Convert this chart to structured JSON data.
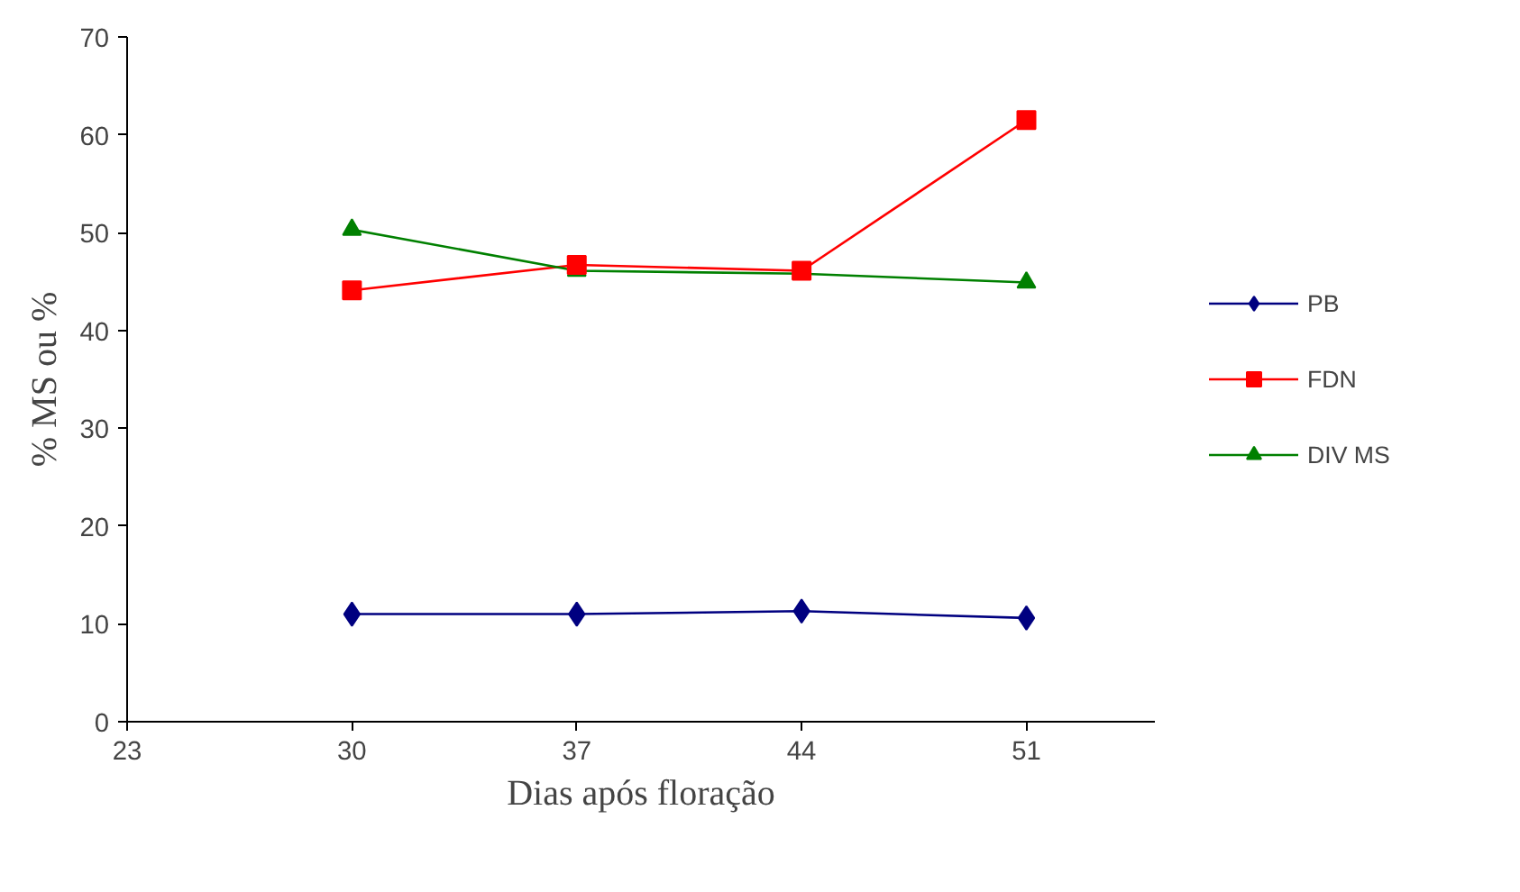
{
  "chart_data": {
    "type": "line",
    "xlabel": "Dias após floração",
    "ylabel": "% MS ou %",
    "x": [
      30,
      37,
      44,
      51
    ],
    "xlim": [
      23,
      55
    ],
    "xticks": [
      23,
      30,
      37,
      44,
      51
    ],
    "ylim": [
      0,
      70
    ],
    "yticks": [
      0,
      10,
      20,
      30,
      40,
      50,
      60,
      70
    ],
    "series": [
      {
        "name": "PB",
        "color": "#000080",
        "marker": "diamond",
        "values": [
          11.0,
          11.0,
          11.3,
          10.6
        ]
      },
      {
        "name": "FDN",
        "color": "#ff0000",
        "marker": "square",
        "values": [
          44.1,
          46.7,
          46.1,
          61.5
        ]
      },
      {
        "name": "DIV MS",
        "color": "#008000",
        "marker": "triangle",
        "values": [
          50.3,
          46.1,
          45.8,
          44.9
        ]
      }
    ],
    "grid": false,
    "legend": "right",
    "line_style": "solid"
  }
}
